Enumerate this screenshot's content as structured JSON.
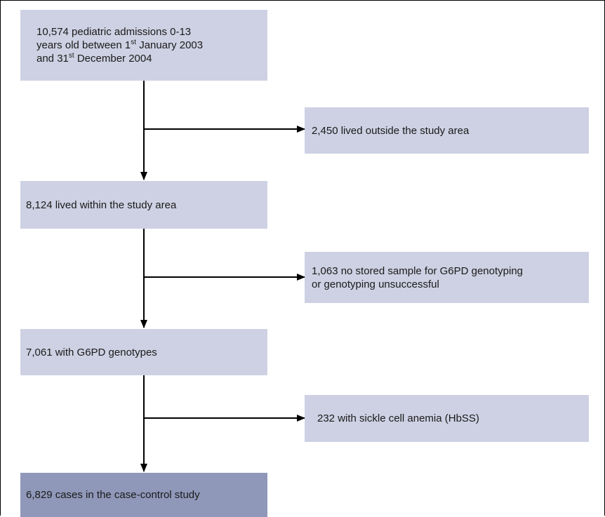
{
  "flowchart": {
    "start": {
      "line1": "10,574 pediatric admissions 0-13",
      "line2_pre": "years old between 1",
      "line2_sup": "st",
      "line2_post": " January 2003",
      "line3_pre": "and 31",
      "line3_sup": "st",
      "line3_post": " December 2004"
    },
    "step2": "8,124 lived within the study area",
    "step3": "7,061 with G6PD genotypes",
    "final": "6,829 cases in the case-control study",
    "exclusions": {
      "ex1": "2,450 lived outside the study area",
      "ex2_line1": "1,063 no stored sample for G6PD genotyping",
      "ex2_line2": "or genotyping unsuccessful",
      "ex3": "232 with sickle cell anemia (HbSS)"
    }
  },
  "colors": {
    "box_fill": "#ced1e3",
    "final_box_fill": "#8f98b9",
    "arrow": "#000000"
  }
}
